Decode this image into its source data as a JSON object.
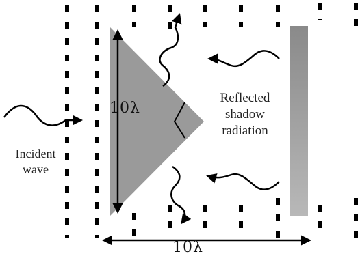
{
  "labels": {
    "dimension_vertical": "10λ",
    "dimension_horizontal": "10λ",
    "incident_line1": "Incident",
    "incident_line2": "wave",
    "reflected_line1": "Reflected",
    "reflected_line2": "shadow",
    "reflected_line3": "radiation"
  },
  "colors": {
    "prism_fill": "#9a9a9a",
    "plate_top": "#8a8a8a",
    "plate_bottom": "#b8b8b8",
    "ink": "#000000"
  }
}
